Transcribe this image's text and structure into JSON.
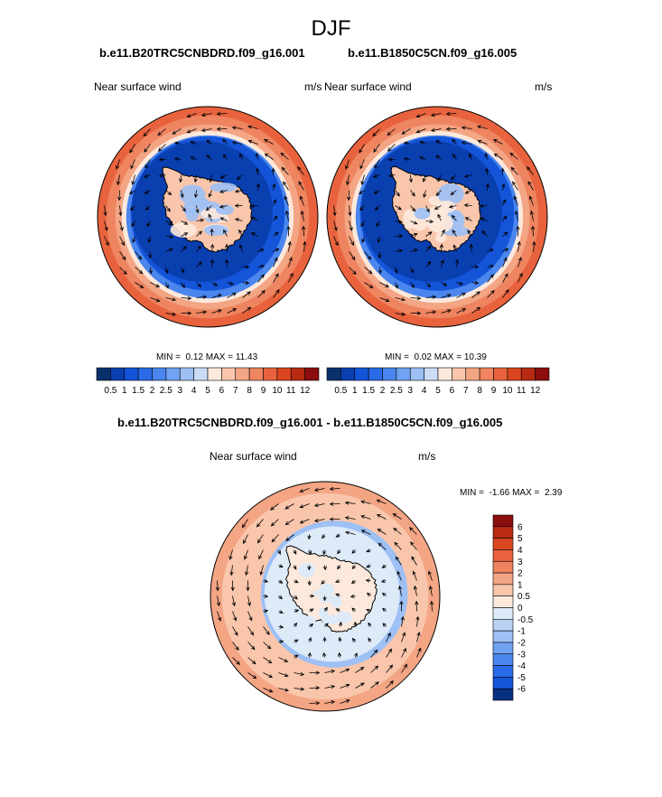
{
  "page_title": "DJF",
  "panels": [
    {
      "case": "b.e11.B20TRC5CNBDRD.f09_g16.001",
      "variable": "Near surface wind",
      "units": "m/s",
      "min_label": "MIN =",
      "min_value": "0.12",
      "max_label": "MAX =",
      "max_value": "11.43"
    },
    {
      "case": "b.e11.B1850C5CN.f09_g16.005",
      "variable": "Near surface wind",
      "units": "m/s",
      "min_label": "MIN =",
      "min_value": "0.02",
      "max_label": "MAX =",
      "max_value": "10.39"
    },
    {
      "case": "b.e11.B20TRC5CNBDRD.f09_g16.001 - b.e11.B1850C5CN.f09_g16.005",
      "variable": "Near surface wind",
      "units": "m/s",
      "min_label": "MIN =",
      "min_value": "-1.66",
      "max_label": "MAX =",
      "max_value": "2.39"
    }
  ],
  "colorbars": {
    "abs_levels": [
      "0.5",
      "1",
      "1.5",
      "2",
      "2.5",
      "3",
      "4",
      "5",
      "6",
      "7",
      "8",
      "9",
      "10",
      "11",
      "12"
    ],
    "abs_colors": [
      "#08306b",
      "#0a3fb0",
      "#1454d8",
      "#2a6ae6",
      "#4a86ee",
      "#6fa2f2",
      "#9dc0f5",
      "#cbdcf7",
      "#fde9dc",
      "#f9c6ac",
      "#f3a584",
      "#ee8460",
      "#e8633d",
      "#d9461f",
      "#b82a12",
      "#8b0d0d"
    ],
    "diff_levels": [
      "6",
      "5",
      "4",
      "3",
      "2",
      "1",
      "0.5",
      "0",
      "-0.5",
      "-1",
      "-2",
      "-3",
      "-4",
      "-5",
      "-6"
    ],
    "diff_colors": [
      "#8b0d0d",
      "#b82a12",
      "#d9461f",
      "#e8633d",
      "#ee8460",
      "#f3a584",
      "#f9c6ac",
      "#fde9dc",
      "#ddeaf8",
      "#b9d2f4",
      "#9dc0f5",
      "#6fa2f2",
      "#4a86ee",
      "#2a6ae6",
      "#1454d8",
      "#08307f"
    ]
  },
  "chart_data": [
    {
      "type": "heatmap",
      "projection": "south-polar stereographic",
      "title": "b.e11.B20TRC5CNBDRD.f09_g16.001",
      "variable": "Near surface wind",
      "units": "m/s",
      "min": 0.12,
      "max": 11.43,
      "levels": [
        0.5,
        1,
        1.5,
        2,
        2.5,
        3,
        4,
        5,
        6,
        7,
        8,
        9,
        10,
        11,
        12
      ],
      "overlay": "wind vectors"
    },
    {
      "type": "heatmap",
      "projection": "south-polar stereographic",
      "title": "b.e11.B1850C5CN.f09_g16.005",
      "variable": "Near surface wind",
      "units": "m/s",
      "min": 0.02,
      "max": 10.39,
      "levels": [
        0.5,
        1,
        1.5,
        2,
        2.5,
        3,
        4,
        5,
        6,
        7,
        8,
        9,
        10,
        11,
        12
      ],
      "overlay": "wind vectors"
    },
    {
      "type": "heatmap",
      "projection": "south-polar stereographic",
      "title": "b.e11.B20TRC5CNBDRD.f09_g16.001 - b.e11.B1850C5CN.f09_g16.005",
      "variable": "Near surface wind",
      "units": "m/s",
      "min": -1.66,
      "max": 2.39,
      "levels": [
        -6,
        -5,
        -4,
        -3,
        -2,
        -1,
        -0.5,
        0,
        0.5,
        1,
        2,
        3,
        4,
        5,
        6
      ],
      "overlay": "wind vectors"
    }
  ]
}
